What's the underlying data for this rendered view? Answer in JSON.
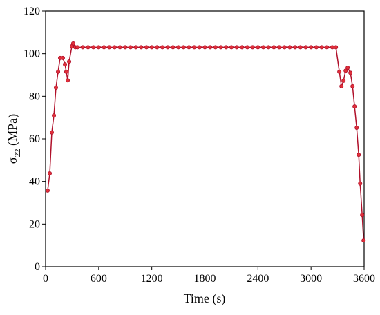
{
  "chart_data": {
    "type": "line",
    "xlabel": "Time (s)",
    "ylabel": [
      "σ",
      "22",
      " (MPa)"
    ],
    "x": [
      23,
      47,
      70,
      94,
      117,
      141,
      164,
      195,
      219,
      234,
      250,
      266,
      297,
      312,
      336,
      360,
      420,
      480,
      540,
      600,
      660,
      720,
      780,
      840,
      900,
      960,
      1020,
      1080,
      1140,
      1200,
      1260,
      1320,
      1380,
      1440,
      1500,
      1560,
      1620,
      1680,
      1740,
      1800,
      1860,
      1920,
      1980,
      2040,
      2100,
      2160,
      2220,
      2280,
      2340,
      2400,
      2460,
      2520,
      2580,
      2640,
      2700,
      2760,
      2820,
      2880,
      2940,
      3000,
      3060,
      3120,
      3180,
      3240,
      3281,
      3320,
      3344,
      3367,
      3391,
      3414,
      3445,
      3469,
      3492,
      3516,
      3539,
      3555,
      3578,
      3594
    ],
    "series": [
      {
        "color": "#b0102a",
        "marker_color": "#e0303a",
        "values": [
          35.7,
          43.8,
          63,
          71,
          84,
          91.5,
          98,
          98,
          95,
          91.5,
          87.5,
          96.3,
          103.5,
          104.8,
          103,
          103,
          103,
          103,
          103,
          103,
          103,
          103,
          103,
          103,
          103,
          103,
          103,
          103,
          103,
          103,
          103,
          103,
          103,
          103,
          103,
          103,
          103,
          103,
          103,
          103,
          103,
          103,
          103,
          103,
          103,
          103,
          103,
          103,
          103,
          103,
          103,
          103,
          103,
          103,
          103,
          103,
          103,
          103,
          103,
          103,
          103,
          103,
          103,
          103,
          103,
          91.5,
          84.7,
          87.3,
          92,
          93.4,
          91,
          84.7,
          75.2,
          65.2,
          52.5,
          39,
          24.3,
          12.3
        ]
      }
    ],
    "xlim": [
      0,
      3600
    ],
    "xticks": [
      0,
      600,
      1200,
      1800,
      2400,
      3000,
      3600
    ],
    "ylim": [
      0,
      120
    ],
    "yticks": [
      0,
      20,
      40,
      60,
      80,
      100,
      120
    ]
  }
}
